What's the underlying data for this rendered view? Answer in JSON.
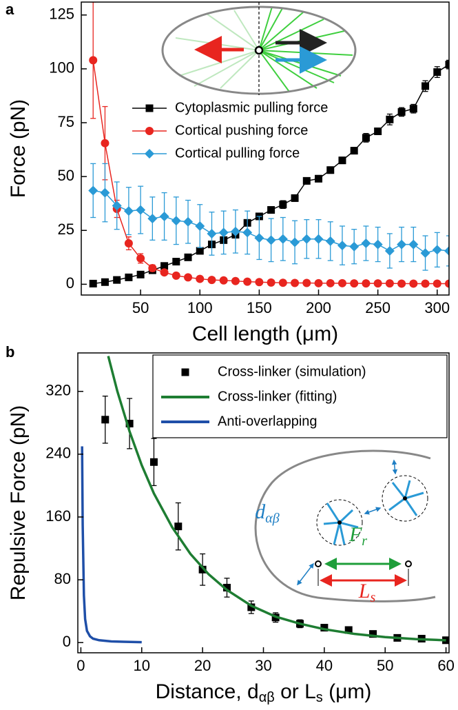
{
  "chart_data": [
    {
      "type": "line",
      "panel": "a",
      "xlabel": "Cell length (μm)",
      "ylabel": "Force (pN)",
      "xlim": [
        0,
        310
      ],
      "ylim": [
        -5,
        131
      ],
      "xticks": [
        50,
        100,
        150,
        200,
        250,
        300
      ],
      "yticks": [
        0,
        25,
        50,
        75,
        100,
        125
      ],
      "legend": "upper center",
      "legend_frame": false,
      "series": [
        {
          "name": "Cytoplasmic pulling force",
          "color": "#000000",
          "marker": "square",
          "line": true,
          "x": [
            10,
            20,
            30,
            40,
            50,
            60,
            70,
            80,
            90,
            100,
            110,
            120,
            130,
            140,
            150,
            160,
            170,
            180,
            190,
            200,
            210,
            220,
            230,
            240,
            250,
            260,
            270,
            280,
            290,
            300,
            310
          ],
          "values": [
            0.3,
            1,
            2,
            3.2,
            4.5,
            6.5,
            8.5,
            10.5,
            12.5,
            15.5,
            18.5,
            20.5,
            23,
            28.5,
            31.5,
            34.5,
            37,
            40,
            48,
            49,
            53,
            57.5,
            62,
            68,
            71,
            76.5,
            80,
            81.5,
            92,
            98.5,
            102
          ],
          "errors": [
            0.3,
            0.5,
            0.5,
            0.6,
            0.8,
            1,
            1,
            1,
            1,
            1,
            1,
            1,
            1,
            1.2,
            1.2,
            1.5,
            1.8,
            1.5,
            1.5,
            1.5,
            1.5,
            1.5,
            1.5,
            2,
            1.5,
            2.5,
            2,
            2,
            2.5,
            2.5,
            2
          ]
        },
        {
          "name": "Cortical pushing force",
          "color": "#e8251f",
          "marker": "circle",
          "line": true,
          "x": [
            10,
            20,
            30,
            40,
            50,
            60,
            70,
            80,
            90,
            100,
            110,
            120,
            130,
            140,
            150,
            160,
            170,
            180,
            190,
            200,
            210,
            220,
            230,
            240,
            250,
            260,
            270,
            280,
            290,
            300,
            310
          ],
          "values": [
            104,
            65.5,
            35,
            19,
            12,
            7.5,
            5.5,
            4,
            3.2,
            2.5,
            2,
            1.8,
            1.5,
            1.2,
            1,
            0.8,
            0.7,
            0.6,
            0.6,
            0.5,
            0.5,
            0.5,
            0.4,
            0.4,
            0.4,
            0.4,
            0.3,
            0.3,
            0.3,
            0.3,
            0.3
          ],
          "errors": [
            27,
            17,
            4,
            3,
            2.2,
            1.5,
            1,
            0.8,
            0.6,
            0.5,
            0.5,
            0.4,
            0.4,
            0.3,
            0.3,
            0.3,
            0.3,
            0.3,
            0.3,
            0.3,
            0.3,
            0.3,
            0.3,
            0.3,
            0.3,
            0.3,
            0.3,
            0.3,
            0.3,
            0.3,
            0.3
          ]
        },
        {
          "name": "Cortical pulling force",
          "color": "#2a9ad6",
          "marker": "diamond",
          "line": true,
          "x": [
            10,
            20,
            30,
            40,
            50,
            60,
            70,
            80,
            90,
            100,
            110,
            120,
            130,
            140,
            150,
            160,
            170,
            180,
            190,
            200,
            210,
            220,
            230,
            240,
            250,
            260,
            270,
            280,
            290,
            300,
            310
          ],
          "values": [
            43.5,
            42.5,
            36.5,
            34,
            34.5,
            30.5,
            31.5,
            29.5,
            29,
            27,
            23.5,
            24,
            24.5,
            24,
            21.5,
            20.5,
            21,
            19.5,
            21,
            21,
            20,
            18,
            17.5,
            19,
            18.5,
            15.5,
            18.5,
            18.5,
            14.5,
            16,
            15.5
          ],
          "errors": [
            12.5,
            13.5,
            11,
            11,
            11,
            10,
            11,
            11,
            10,
            10,
            10,
            10,
            10,
            10,
            10,
            10,
            10,
            10,
            9,
            9,
            9,
            9,
            8,
            8,
            8,
            8,
            8,
            8,
            8,
            8,
            7
          ]
        }
      ]
    },
    {
      "type": "line",
      "panel": "b",
      "xlabel": [
        "Distance, d",
        "αβ",
        " or L",
        "s",
        " (μm)"
      ],
      "ylabel": "Repulsive Force (pN)",
      "xlim": [
        -0.5,
        60.5
      ],
      "ylim": [
        -13,
        369
      ],
      "xticks": [
        0,
        10,
        20,
        30,
        40,
        50,
        60
      ],
      "yticks": [
        0,
        80,
        160,
        240,
        320
      ],
      "legend": "upper right",
      "legend_frame": true,
      "annotations": [
        {
          "text": "d",
          "sub": "αβ",
          "color": "#1f7fc4"
        },
        {
          "text": "F",
          "sub": "r",
          "color": "#1e9e3a"
        },
        {
          "text": "L",
          "sub": "s",
          "color": "#e8251f"
        }
      ],
      "series": [
        {
          "name": "Cross-linker (simulation)",
          "color": "#000000",
          "marker": "square",
          "line": false,
          "x": [
            4,
            8,
            12,
            16,
            20,
            24,
            28,
            32,
            36,
            40,
            44,
            48,
            52,
            56,
            60
          ],
          "values": [
            284,
            279,
            230,
            148,
            93,
            70,
            45,
            32,
            24,
            19,
            16,
            11,
            6,
            5,
            3
          ],
          "errors": [
            30,
            32,
            30,
            30,
            20,
            12,
            8,
            6,
            5,
            3,
            2,
            2,
            2,
            1,
            1
          ]
        },
        {
          "name": "Cross-linker (fitting)",
          "color": "#1e7d32",
          "marker": "none",
          "line": true,
          "x": [
            4.5,
            6,
            8,
            10,
            12,
            15,
            18,
            21,
            24,
            28,
            32,
            36,
            40,
            45,
            50,
            55,
            60
          ],
          "values": [
            365,
            320,
            269,
            226,
            190,
            147,
            113,
            87,
            67,
            47,
            33,
            24,
            17,
            11,
            7,
            4.5,
            2.9
          ]
        },
        {
          "name": "Anti-overlapping",
          "color": "#1f4fa8",
          "marker": "none",
          "line": true,
          "x": [
            0.2,
            0.3,
            0.5,
            0.7,
            1,
            1.5,
            2,
            3,
            5,
            7,
            10
          ],
          "values": [
            250,
            150,
            60,
            30,
            15,
            8,
            5,
            3,
            1.5,
            1,
            0.5
          ]
        }
      ]
    }
  ]
}
